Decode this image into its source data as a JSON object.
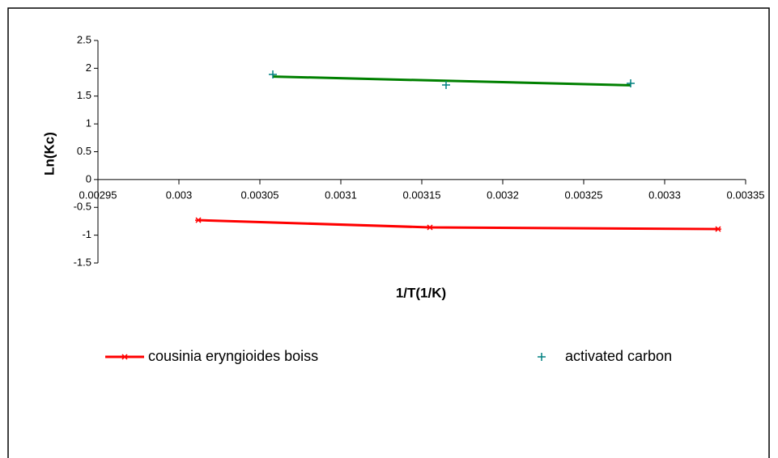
{
  "chart_data": {
    "type": "scatter",
    "x_label": "1/T(1/K)",
    "y_label": "Ln(Kc)",
    "xlim": [
      0.00295,
      0.00335
    ],
    "xticks": [
      0.00295,
      0.003,
      0.00305,
      0.0031,
      0.00315,
      0.0032,
      0.00325,
      0.0033,
      0.00335
    ],
    "ylim": [
      -1.5,
      2.5
    ],
    "yticks": [
      -1.5,
      -1,
      -0.5,
      0,
      0.5,
      1,
      1.5,
      2,
      2.5
    ],
    "grid": false,
    "series": [
      {
        "name": "cousinia eryngioides boiss",
        "color": "#ff0000",
        "marker": "star",
        "line": true,
        "trendline": false,
        "x": [
          0.003012,
          0.003155,
          0.003333
        ],
        "values": [
          -0.73,
          -0.86,
          -0.89
        ]
      },
      {
        "name": "activated carbon",
        "color": "#008080",
        "marker": "plus",
        "line": false,
        "trendline": true,
        "trendline_color": "#008000",
        "x": [
          0.003058,
          0.003165,
          0.003279
        ],
        "values": [
          1.89,
          1.7,
          1.73
        ]
      }
    ]
  }
}
